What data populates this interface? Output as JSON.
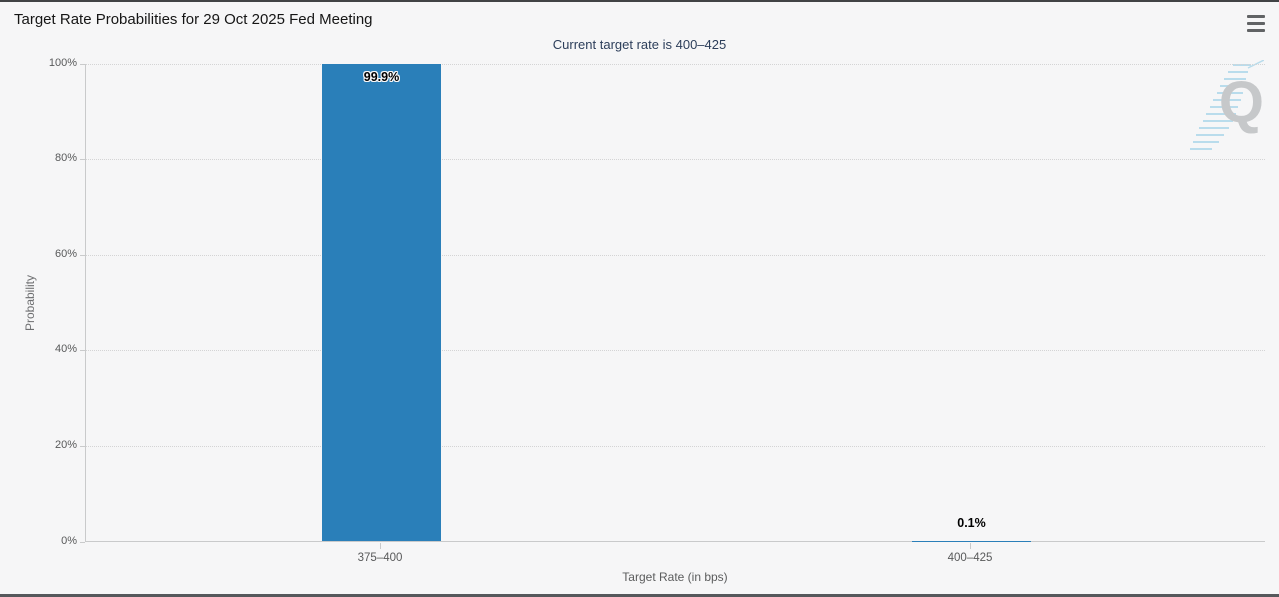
{
  "panel": {
    "title": "Target Rate Probabilities for 29 Oct 2025 Fed Meeting",
    "menu_icon": "hamburger-menu-icon",
    "watermark": {
      "letter": "Q",
      "name": "quikstrike-logo"
    }
  },
  "chart_data": {
    "type": "bar",
    "title": "Target Rate Probabilities for 29 Oct 2025 Fed Meeting",
    "subtitle": "Current target rate is 400–425",
    "categories": [
      "375–400",
      "400–425"
    ],
    "values": [
      99.9,
      0.1
    ],
    "data_labels": [
      "99.9%",
      "0.1%"
    ],
    "xlabel": "Target Rate (in bps)",
    "ylabel": "Probability",
    "ylim": [
      0,
      100
    ],
    "y_ticks": [
      "0%",
      "20%",
      "40%",
      "60%",
      "80%",
      "100%"
    ],
    "grid": "horizontal dotted",
    "legend": "none",
    "colors": {
      "bar": "#2a7fb9",
      "background": "#f6f6f7",
      "subtitle_text": "#2c3e5a",
      "axis_text": "#58595a",
      "watermark_gray": "#c6c8ca",
      "watermark_hatch": "#b9dcec"
    }
  }
}
